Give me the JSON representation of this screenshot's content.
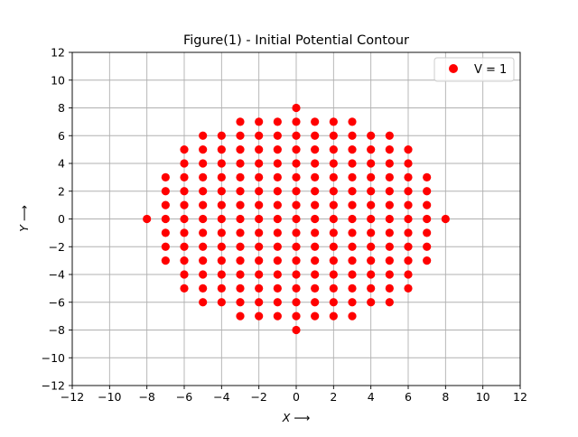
{
  "chart_data": {
    "type": "scatter",
    "title": "Figure(1) - Initial Potential Contour",
    "xlabel": "X ⟶",
    "ylabel": "Y ⟶",
    "xlim": [
      -12,
      12
    ],
    "ylim": [
      -12,
      12
    ],
    "xticks": [
      -12,
      -10,
      -8,
      -6,
      -4,
      -2,
      0,
      2,
      4,
      6,
      8,
      10,
      12
    ],
    "yticks": [
      -12,
      -10,
      -8,
      -6,
      -4,
      -2,
      0,
      2,
      4,
      6,
      8,
      10,
      12
    ],
    "tick_labels": [
      "−12",
      "−10",
      "−8",
      "−6",
      "−4",
      "−2",
      "0",
      "2",
      "4",
      "6",
      "8",
      "10",
      "12"
    ],
    "grid": true,
    "legend": {
      "placement": "top-right"
    },
    "point_rule": "all integer (x, y) with x² + y² ≤ 64",
    "series": [
      {
        "name": "V = 1",
        "color": "#ff0000",
        "marker": "circle"
      }
    ]
  }
}
